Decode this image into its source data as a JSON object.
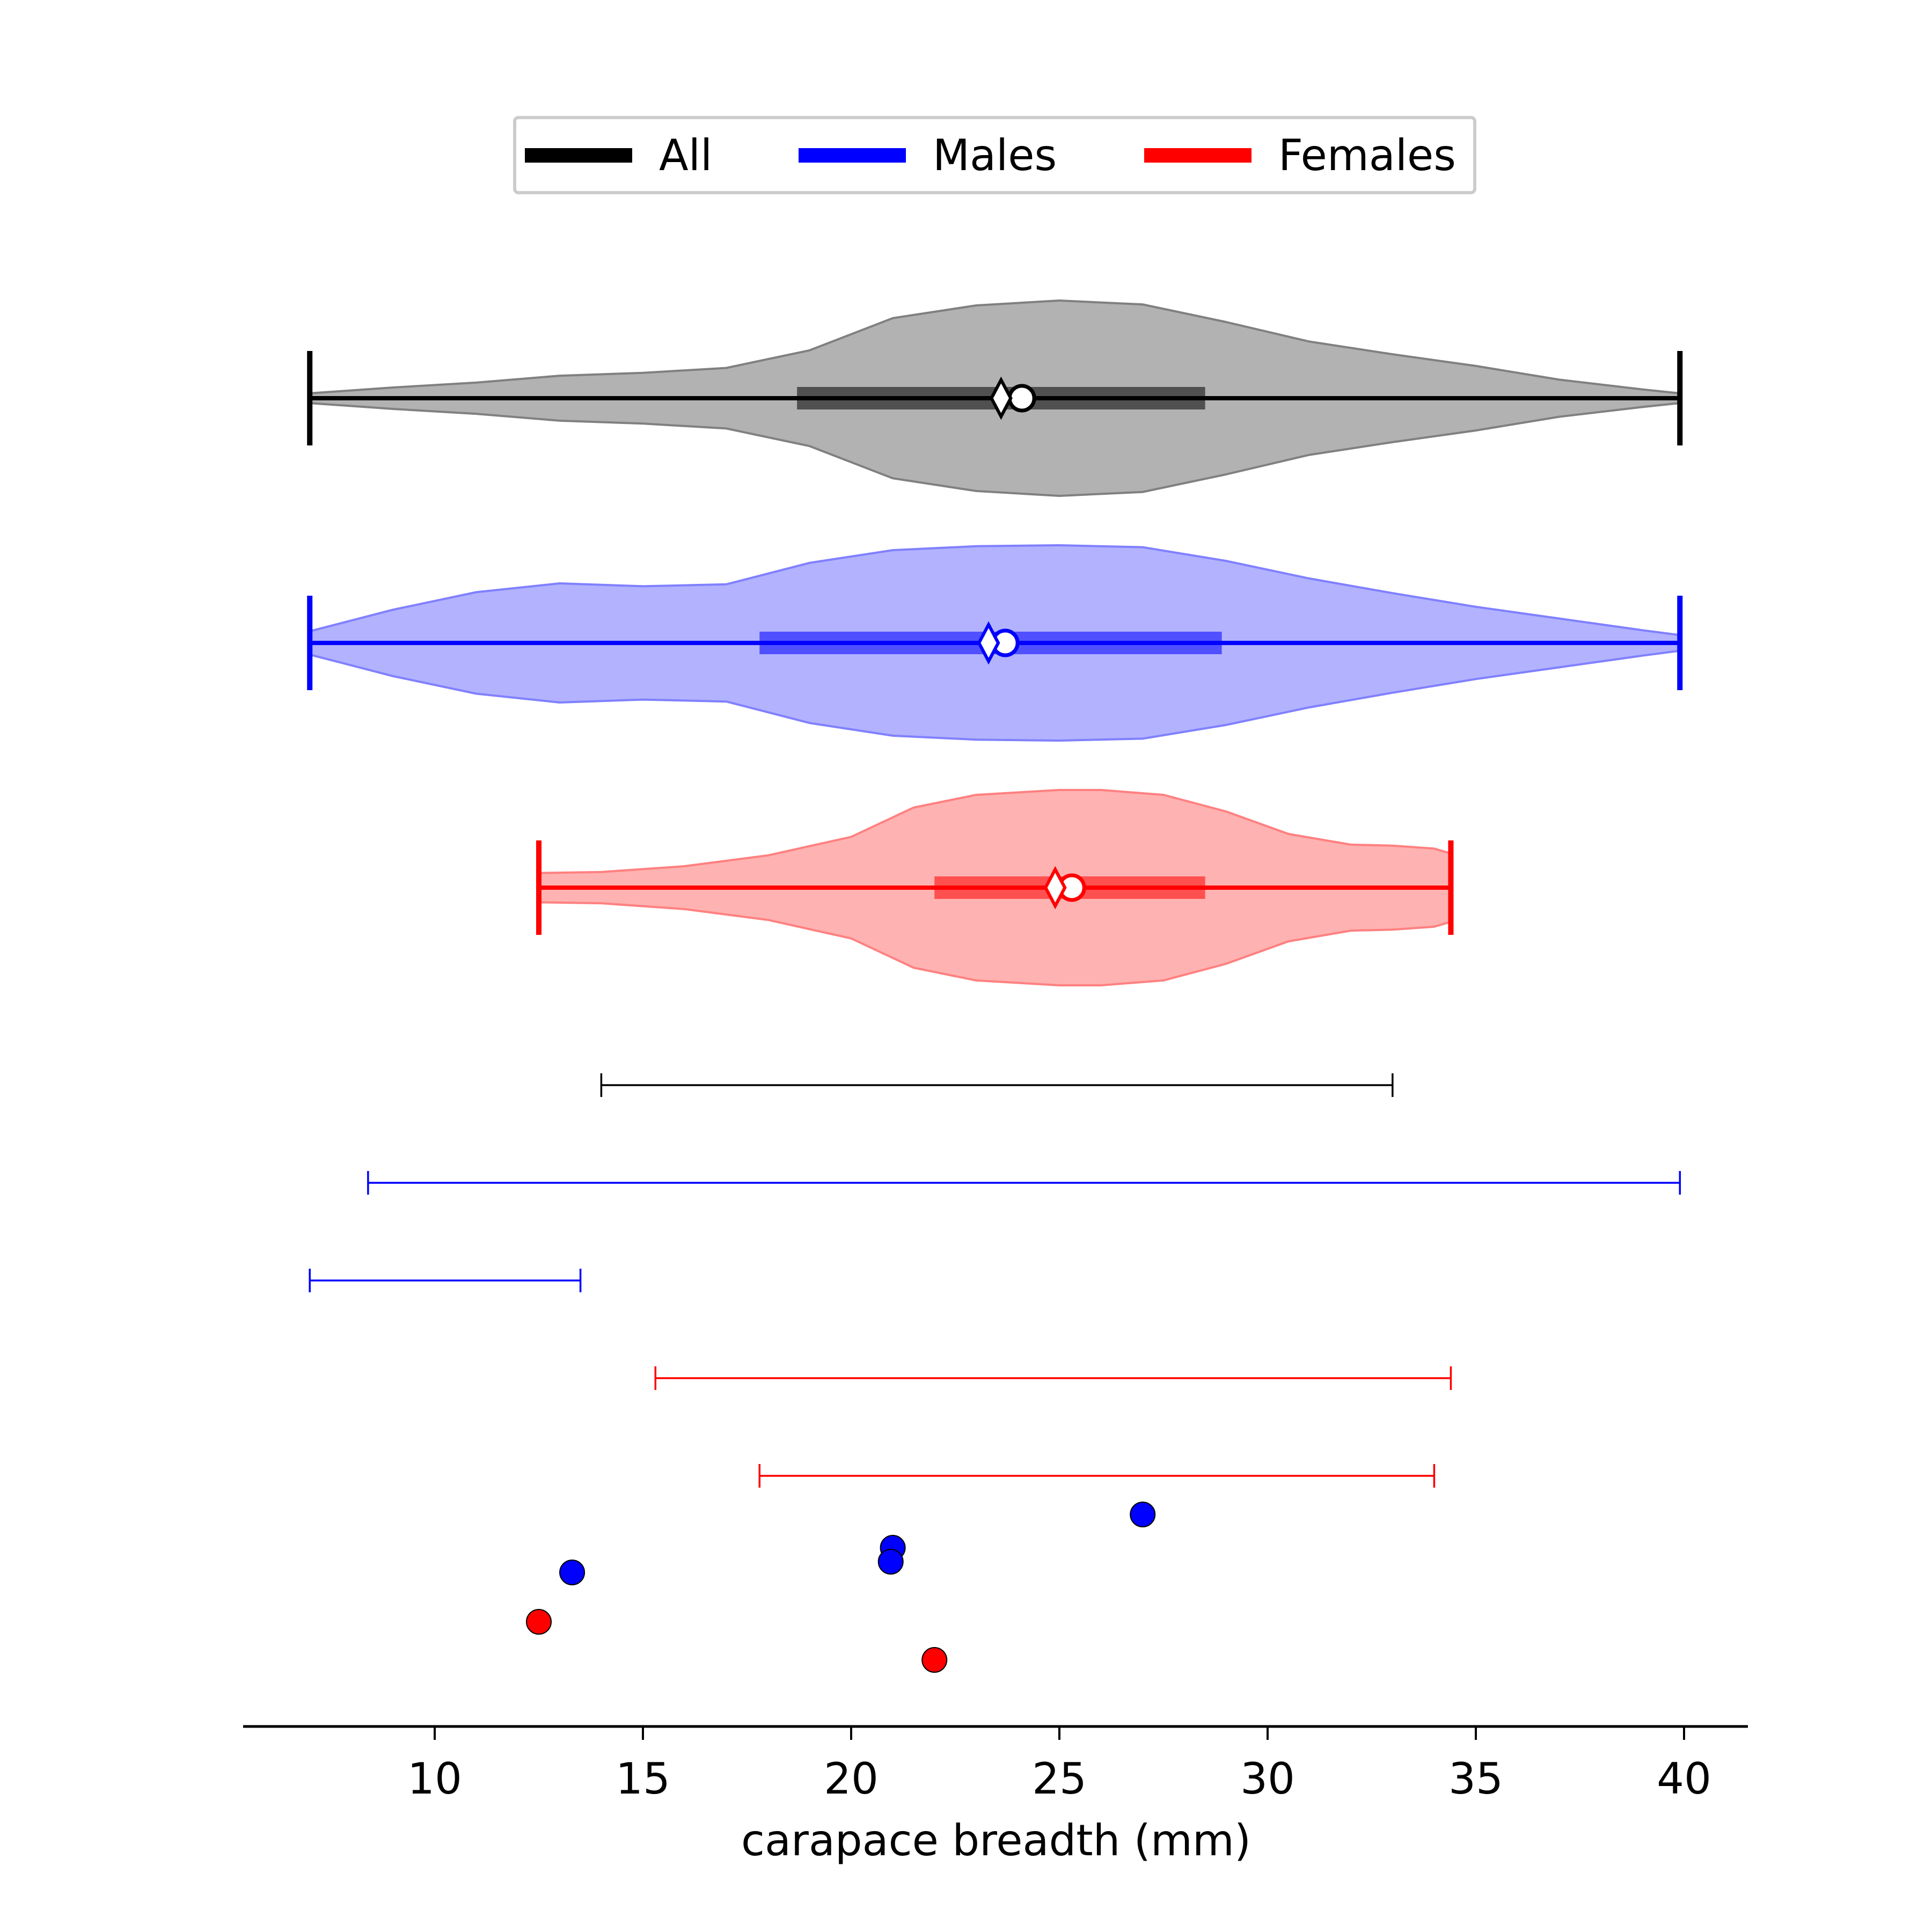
{
  "chart_data": {
    "type": "violin",
    "xlabel": "carapace breadth (mm)",
    "xlim": [
      5.7,
      41.5
    ],
    "xticks": [
      10,
      15,
      20,
      25,
      30,
      35,
      40
    ],
    "legend": {
      "placement": "top-center",
      "ncol": 3
    },
    "legend_entries": [
      {
        "label": "All",
        "color": "#000000"
      },
      {
        "label": "Males",
        "color": "#0000ff"
      },
      {
        "label": "Females",
        "color": "#ff0000"
      }
    ],
    "violins": [
      {
        "name": "All",
        "color": "#000000",
        "fill": "#b2b2b2",
        "edge": "#808080",
        "min": 7.0,
        "max": 39.9,
        "q1": 18.7,
        "q3": 28.5,
        "median": 23.6,
        "mean": 24.1,
        "profile": [
          [
            7.0,
            0.05
          ],
          [
            9.0,
            0.11
          ],
          [
            11.0,
            0.16
          ],
          [
            13.0,
            0.23
          ],
          [
            15.0,
            0.26
          ],
          [
            17.0,
            0.31
          ],
          [
            19.0,
            0.49
          ],
          [
            21.0,
            0.82
          ],
          [
            23.0,
            0.95
          ],
          [
            25.0,
            1.0
          ],
          [
            27.0,
            0.96
          ],
          [
            29.0,
            0.78
          ],
          [
            31.0,
            0.58
          ],
          [
            33.0,
            0.45
          ],
          [
            35.0,
            0.33
          ],
          [
            37.0,
            0.19
          ],
          [
            39.0,
            0.09
          ],
          [
            39.9,
            0.05
          ]
        ]
      },
      {
        "name": "Males",
        "color": "#0000ff",
        "fill": "#b2b2ff",
        "edge": "#8080ff",
        "min": 7.0,
        "max": 39.9,
        "q1": 17.8,
        "q3": 28.9,
        "median": 23.3,
        "mean": 23.7,
        "profile": [
          [
            7.0,
            0.12
          ],
          [
            9.0,
            0.34
          ],
          [
            11.0,
            0.52
          ],
          [
            13.0,
            0.61
          ],
          [
            15.0,
            0.58
          ],
          [
            17.0,
            0.6
          ],
          [
            19.0,
            0.82
          ],
          [
            21.0,
            0.95
          ],
          [
            23.0,
            0.99
          ],
          [
            25.0,
            1.0
          ],
          [
            27.0,
            0.98
          ],
          [
            29.0,
            0.84
          ],
          [
            31.0,
            0.66
          ],
          [
            33.0,
            0.51
          ],
          [
            35.0,
            0.37
          ],
          [
            37.0,
            0.25
          ],
          [
            39.0,
            0.13
          ],
          [
            39.9,
            0.08
          ]
        ]
      },
      {
        "name": "Females",
        "color": "#ff0000",
        "fill": "#ffb2b2",
        "edge": "#ff8080",
        "min": 12.5,
        "max": 34.4,
        "q1": 22.0,
        "q3": 28.5,
        "median": 24.9,
        "mean": 25.3,
        "profile": [
          [
            12.5,
            0.15
          ],
          [
            14.0,
            0.16
          ],
          [
            16.0,
            0.22
          ],
          [
            18.0,
            0.33
          ],
          [
            20.0,
            0.52
          ],
          [
            21.5,
            0.82
          ],
          [
            23.0,
            0.95
          ],
          [
            25.0,
            1.0
          ],
          [
            26.0,
            1.0
          ],
          [
            27.5,
            0.95
          ],
          [
            29.0,
            0.78
          ],
          [
            30.5,
            0.55
          ],
          [
            32.0,
            0.44
          ],
          [
            33.0,
            0.43
          ],
          [
            34.0,
            0.4
          ],
          [
            34.4,
            0.35
          ]
        ]
      }
    ],
    "intervals": [
      {
        "color": "#000000",
        "low": 14.0,
        "high": 33.0
      },
      {
        "color": "#0000ff",
        "low": 8.4,
        "high": 39.9
      },
      {
        "color": "#0000ff",
        "low": 7.0,
        "high": 13.5
      },
      {
        "color": "#ff0000",
        "low": 15.3,
        "high": 34.4
      },
      {
        "color": "#ff0000",
        "low": 17.8,
        "high": 34.0
      }
    ],
    "points": [
      {
        "color": "#0000ff",
        "x": 27.0
      },
      {
        "color": "#0000ff",
        "x": 21.0
      },
      {
        "color": "#0000ff",
        "x": 20.95
      },
      {
        "color": "#0000ff",
        "x": 13.3
      },
      {
        "color": "#ff0000",
        "x": 12.5
      },
      {
        "color": "#ff0000",
        "x": 22.0
      }
    ]
  }
}
